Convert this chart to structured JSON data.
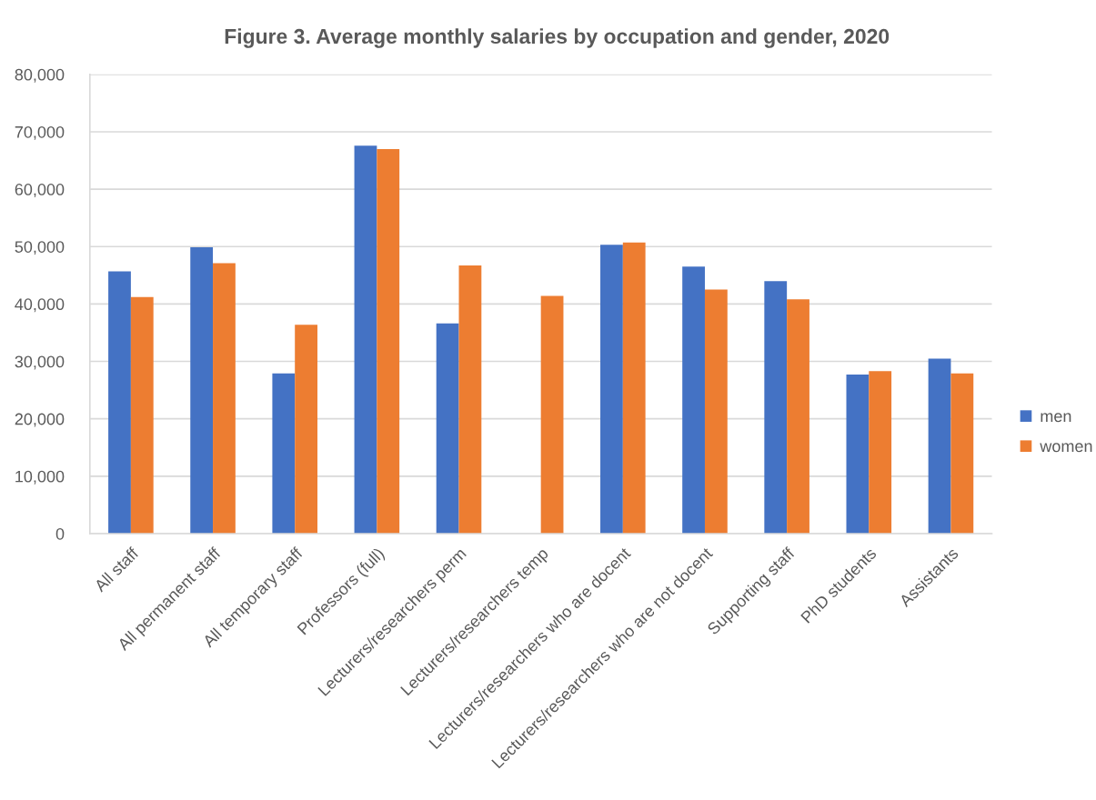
{
  "chart_data": {
    "type": "bar",
    "title": "Figure 3. Average monthly salaries by occupation and gender, 2020",
    "categories": [
      "All staff",
      "All permanent staff",
      "All temporary staff",
      "Professors (full)",
      "Lecturers/researchers perm",
      "Lecturers/researchers temp",
      "Lecturers/researchers who are docent",
      "Lecturers/researchers who are not docent",
      "Supporting staff",
      "PhD students",
      "Assistants"
    ],
    "series": [
      {
        "name": "men",
        "color": "#4472c4",
        "values": [
          45700,
          49900,
          27900,
          67600,
          36600,
          null,
          50300,
          46500,
          44000,
          27700,
          30500
        ]
      },
      {
        "name": "women",
        "color": "#ed7d31",
        "values": [
          41200,
          47100,
          36400,
          67000,
          46700,
          41400,
          50700,
          42500,
          40800,
          28300,
          27900
        ]
      }
    ],
    "ylim": [
      0,
      80000
    ],
    "yticks": [
      0,
      {
        "value": 10000,
        "label": "10,000"
      },
      {
        "value": 20000,
        "label": "20,000"
      },
      {
        "value": 30000,
        "label": "30,000"
      },
      {
        "value": 40000,
        "label": "40,000"
      },
      {
        "value": 50000,
        "label": "50,000"
      },
      {
        "value": 60000,
        "label": "60,000"
      },
      {
        "value": 70000,
        "label": "70,000"
      },
      {
        "value": 80000,
        "label": "80,000"
      }
    ],
    "grid": "y",
    "legend": "right"
  }
}
